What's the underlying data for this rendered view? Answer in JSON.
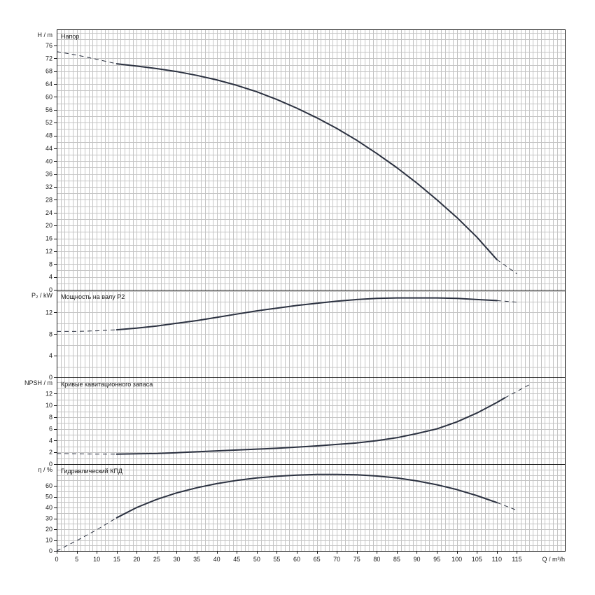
{
  "chart_data": {
    "type": "line",
    "x_axis": {
      "label": "Q / m³/h",
      "range": [
        0,
        127
      ],
      "ticks": [
        "0",
        "5",
        "10",
        "15",
        "20",
        "25",
        "30",
        "35",
        "40",
        "45",
        "50",
        "55",
        "60",
        "65",
        "70",
        "75",
        "80",
        "85",
        "90",
        "95",
        "100",
        "105",
        "110",
        "115"
      ]
    },
    "grid": true,
    "panels": [
      {
        "id": "head",
        "title": "Напор",
        "ylabel": "H / m",
        "ylim": [
          0,
          81
        ],
        "ticks": [
          "0",
          "4",
          "8",
          "12",
          "16",
          "20",
          "24",
          "28",
          "32",
          "36",
          "40",
          "44",
          "48",
          "52",
          "56",
          "60",
          "64",
          "68",
          "72",
          "76"
        ],
        "series": {
          "solid": [
            [
              15,
              70.3
            ],
            [
              20,
              69.6
            ],
            [
              25,
              68.8
            ],
            [
              30,
              67.9
            ],
            [
              35,
              66.7
            ],
            [
              40,
              65.3
            ],
            [
              45,
              63.6
            ],
            [
              50,
              61.6
            ],
            [
              55,
              59.2
            ],
            [
              60,
              56.5
            ],
            [
              65,
              53.5
            ],
            [
              70,
              50.2
            ],
            [
              75,
              46.5
            ],
            [
              80,
              42.4
            ],
            [
              85,
              38.0
            ],
            [
              90,
              33.2
            ],
            [
              95,
              28.0
            ],
            [
              100,
              22.5
            ],
            [
              105,
              16.4
            ],
            [
              110,
              9.4
            ]
          ],
          "dashed_start": [
            [
              0,
              74.1
            ],
            [
              5,
              73.0
            ],
            [
              10,
              71.7
            ],
            [
              15,
              70.3
            ]
          ],
          "dashed_end": [
            [
              110,
              9.4
            ],
            [
              115,
              5.0
            ]
          ]
        }
      },
      {
        "id": "power",
        "title": "Мощность на валу P2",
        "ylabel": "P₂ / kW",
        "ylim": [
          0,
          16.2
        ],
        "ticks": [
          "0",
          "4",
          "8",
          "12"
        ],
        "series": {
          "solid": [
            [
              15,
              8.8
            ],
            [
              20,
              9.1
            ],
            [
              25,
              9.5
            ],
            [
              30,
              10.0
            ],
            [
              35,
              10.5
            ],
            [
              40,
              11.1
            ],
            [
              45,
              11.7
            ],
            [
              50,
              12.3
            ],
            [
              55,
              12.8
            ],
            [
              60,
              13.3
            ],
            [
              65,
              13.7
            ],
            [
              70,
              14.1
            ],
            [
              75,
              14.4
            ],
            [
              80,
              14.6
            ],
            [
              85,
              14.7
            ],
            [
              90,
              14.7
            ],
            [
              95,
              14.7
            ],
            [
              100,
              14.6
            ],
            [
              105,
              14.4
            ],
            [
              110,
              14.2
            ]
          ],
          "dashed_start": [
            [
              0,
              8.5
            ],
            [
              5,
              8.5
            ],
            [
              10,
              8.6
            ],
            [
              15,
              8.8
            ]
          ],
          "dashed_end": [
            [
              110,
              14.2
            ],
            [
              115,
              13.9
            ]
          ]
        }
      },
      {
        "id": "npsh",
        "title": "Кривые кавитационного запаса",
        "ylabel": "NPSH / m",
        "ylim": [
          0,
          14.8
        ],
        "ticks": [
          "0",
          "2",
          "4",
          "6",
          "8",
          "10",
          "12"
        ],
        "series": {
          "solid": [
            [
              15,
              1.7
            ],
            [
              20,
              1.75
            ],
            [
              25,
              1.8
            ],
            [
              30,
              1.95
            ],
            [
              35,
              2.1
            ],
            [
              40,
              2.25
            ],
            [
              45,
              2.4
            ],
            [
              50,
              2.55
            ],
            [
              55,
              2.7
            ],
            [
              60,
              2.9
            ],
            [
              65,
              3.1
            ],
            [
              70,
              3.35
            ],
            [
              75,
              3.6
            ],
            [
              80,
              4.0
            ],
            [
              85,
              4.5
            ],
            [
              90,
              5.2
            ],
            [
              95,
              6.0
            ],
            [
              100,
              7.2
            ],
            [
              105,
              8.7
            ],
            [
              110,
              10.5
            ],
            [
              112,
              11.3
            ]
          ],
          "dashed_start": [
            [
              0,
              1.8
            ],
            [
              5,
              1.75
            ],
            [
              10,
              1.7
            ],
            [
              15,
              1.7
            ]
          ],
          "dashed_end": [
            [
              112,
              11.3
            ],
            [
              118,
              13.5
            ]
          ]
        }
      },
      {
        "id": "efficiency",
        "title": "Гидравлический КПД",
        "ylabel": "η / %",
        "ylim": [
          0,
          80
        ],
        "ticks": [
          "0",
          "10",
          "20",
          "30",
          "40",
          "50",
          "60"
        ],
        "series": {
          "solid": [
            [
              15,
              30.5
            ],
            [
              20,
              40.0
            ],
            [
              25,
              47.5
            ],
            [
              30,
              53.5
            ],
            [
              35,
              58.2
            ],
            [
              40,
              62.0
            ],
            [
              45,
              65.0
            ],
            [
              50,
              67.2
            ],
            [
              55,
              68.8
            ],
            [
              60,
              69.9
            ],
            [
              65,
              70.5
            ],
            [
              70,
              70.5
            ],
            [
              75,
              70.1
            ],
            [
              80,
              69.0
            ],
            [
              85,
              67.2
            ],
            [
              90,
              64.5
            ],
            [
              95,
              61.0
            ],
            [
              100,
              56.5
            ],
            [
              105,
              51.0
            ],
            [
              110,
              44.5
            ]
          ],
          "dashed_start": [
            [
              0,
              0
            ],
            [
              5,
              9.5
            ],
            [
              10,
              19.5
            ],
            [
              15,
              30.5
            ]
          ],
          "dashed_end": [
            [
              110,
              44.5
            ],
            [
              115,
              37.5
            ]
          ]
        }
      }
    ]
  }
}
